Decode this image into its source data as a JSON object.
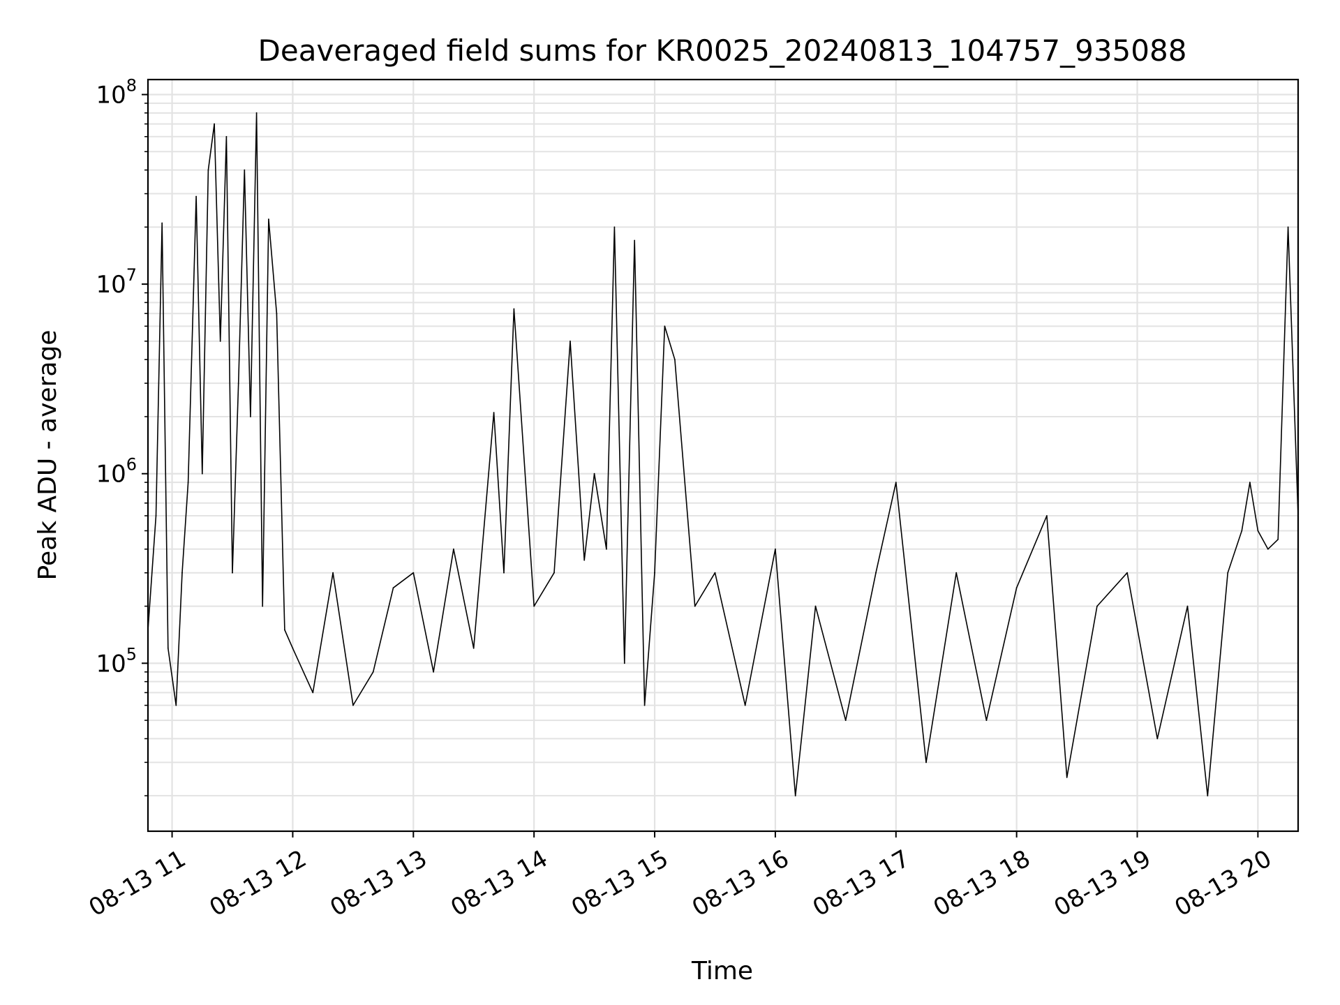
{
  "chart_data": {
    "type": "line",
    "title": "Deaveraged field sums for KR0025_20240813_104757_935088",
    "xlabel": "Time",
    "ylabel": "Peak ADU - average",
    "yscale": "log",
    "grid": true,
    "x_ticks": [
      "08-13 11",
      "08-13 12",
      "08-13 13",
      "08-13 14",
      "08-13 15",
      "08-13 16",
      "08-13 17",
      "08-13 18",
      "08-13 19",
      "08-13 20"
    ],
    "y_ticks": [
      {
        "base": "10",
        "exp": "5",
        "value": 100000
      },
      {
        "base": "10",
        "exp": "6",
        "value": 1000000
      },
      {
        "base": "10",
        "exp": "7",
        "value": 10000000
      },
      {
        "base": "10",
        "exp": "8",
        "value": 100000000
      }
    ],
    "xlim": [
      "2024-08-13 10:48",
      "2024-08-13 20:20"
    ],
    "ylim": [
      13000,
      120000000
    ],
    "series": [
      {
        "color": "#000000",
        "x": [
          "2024-08-13 10:48",
          "2024-08-13 10:52",
          "2024-08-13 10:55",
          "2024-08-13 10:58",
          "2024-08-13 11:02",
          "2024-08-13 11:05",
          "2024-08-13 11:08",
          "2024-08-13 11:12",
          "2024-08-13 11:15",
          "2024-08-13 11:18",
          "2024-08-13 11:21",
          "2024-08-13 11:24",
          "2024-08-13 11:27",
          "2024-08-13 11:30",
          "2024-08-13 11:33",
          "2024-08-13 11:36",
          "2024-08-13 11:39",
          "2024-08-13 11:42",
          "2024-08-13 11:45",
          "2024-08-13 11:48",
          "2024-08-13 11:52",
          "2024-08-13 11:56",
          "2024-08-13 12:00",
          "2024-08-13 12:10",
          "2024-08-13 12:20",
          "2024-08-13 12:30",
          "2024-08-13 12:40",
          "2024-08-13 12:50",
          "2024-08-13 13:00",
          "2024-08-13 13:10",
          "2024-08-13 13:20",
          "2024-08-13 13:30",
          "2024-08-13 13:40",
          "2024-08-13 13:45",
          "2024-08-13 13:50",
          "2024-08-13 14:00",
          "2024-08-13 14:10",
          "2024-08-13 14:18",
          "2024-08-13 14:25",
          "2024-08-13 14:30",
          "2024-08-13 14:36",
          "2024-08-13 14:40",
          "2024-08-13 14:45",
          "2024-08-13 14:50",
          "2024-08-13 14:55",
          "2024-08-13 15:00",
          "2024-08-13 15:05",
          "2024-08-13 15:10",
          "2024-08-13 15:20",
          "2024-08-13 15:30",
          "2024-08-13 15:45",
          "2024-08-13 16:00",
          "2024-08-13 16:10",
          "2024-08-13 16:20",
          "2024-08-13 16:35",
          "2024-08-13 16:50",
          "2024-08-13 17:00",
          "2024-08-13 17:15",
          "2024-08-13 17:30",
          "2024-08-13 17:45",
          "2024-08-13 18:00",
          "2024-08-13 18:15",
          "2024-08-13 18:25",
          "2024-08-13 18:40",
          "2024-08-13 18:55",
          "2024-08-13 19:10",
          "2024-08-13 19:25",
          "2024-08-13 19:35",
          "2024-08-13 19:45",
          "2024-08-13 19:52",
          "2024-08-13 19:56",
          "2024-08-13 20:00",
          "2024-08-13 20:05",
          "2024-08-13 20:10",
          "2024-08-13 20:15",
          "2024-08-13 20:20"
        ],
        "y": [
          150000,
          600000,
          21000000,
          120000,
          60000,
          300000,
          900000,
          29000000,
          1000000,
          40000000,
          70000000,
          5000000,
          60000000,
          300000,
          3000000,
          40000000,
          2000000,
          80000000,
          200000,
          22000000,
          7000000,
          150000,
          120000,
          70000,
          300000,
          60000,
          90000,
          250000,
          300000,
          90000,
          400000,
          120000,
          2100000,
          300000,
          7400000,
          200000,
          300000,
          5000000,
          350000,
          1000000,
          400000,
          20000000,
          100000,
          17000000,
          60000,
          300000,
          6000000,
          4000000,
          200000,
          300000,
          60000,
          400000,
          20000,
          200000,
          50000,
          300000,
          900000,
          30000,
          300000,
          50000,
          250000,
          600000,
          25000,
          200000,
          300000,
          40000,
          200000,
          20000,
          300000,
          500000,
          900000,
          500000,
          400000,
          450000,
          20000000,
          600000
        ]
      }
    ]
  }
}
